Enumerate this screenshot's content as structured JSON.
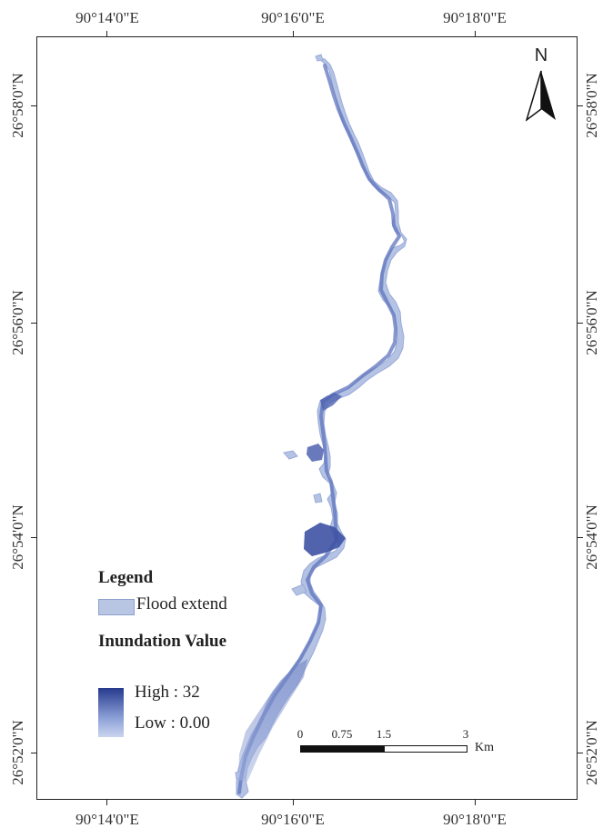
{
  "map": {
    "coords": {
      "top": [
        "90°14'0\"E",
        "90°16'0\"E",
        "90°18'0\"E"
      ],
      "bottom": [
        "90°14'0\"E",
        "90°16'0\"E",
        "90°18'0\"E"
      ],
      "left": [
        "26°58'0\"N",
        "26°56'0\"N",
        "26°54'0\"N",
        "26°52'0\"N"
      ],
      "right": [
        "26°58'0\"N",
        "26°56'0\"N",
        "26°54'0\"N",
        "26°52'0\"N"
      ]
    },
    "north_arrow": {
      "letter": "N"
    },
    "legend": {
      "title": "Legend",
      "flood_label": "Flood extend",
      "inundation_title": "Inundation Value",
      "high_label": "High : 32",
      "low_label": "Low : 0.00",
      "flood_color": "#b9c6e3",
      "high_color": "#273a8e",
      "low_color": "#cad5ef"
    },
    "scale_bar": {
      "labels": [
        "0",
        "0.75",
        "1.5",
        "3"
      ],
      "unit": "Km"
    },
    "inundation": {
      "high_value": 32,
      "low_value": 0.0
    }
  }
}
